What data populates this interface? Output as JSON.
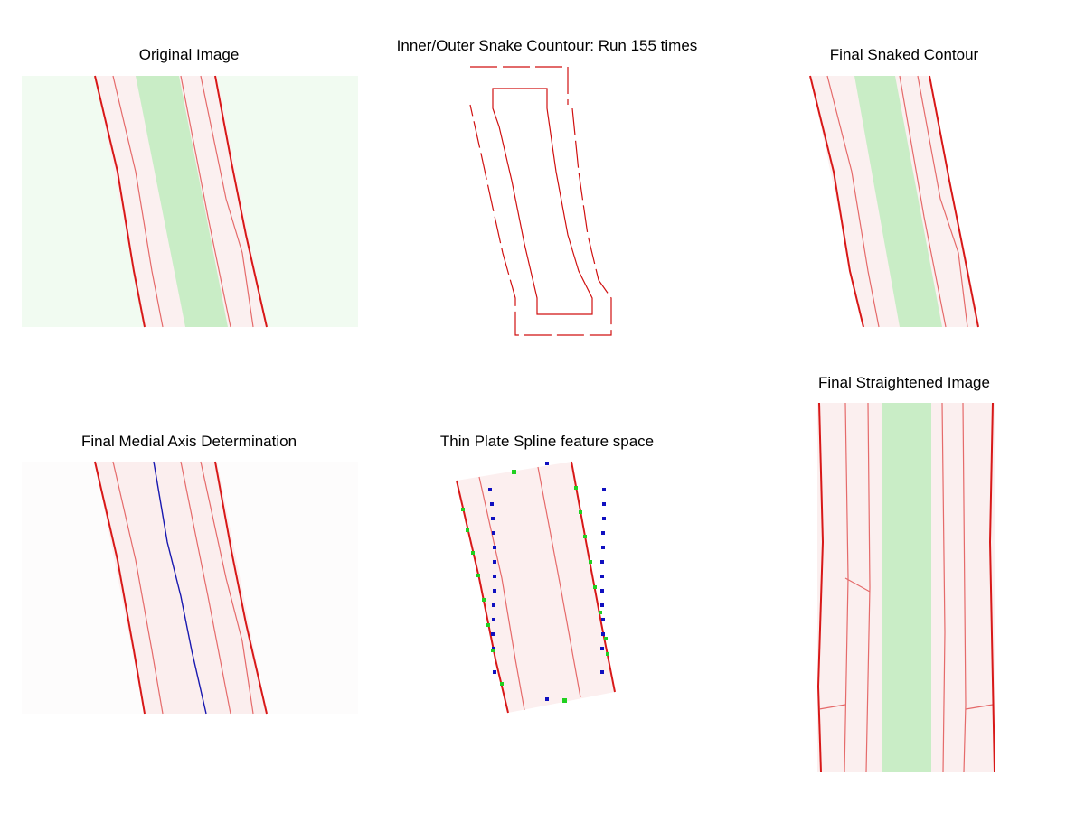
{
  "panels": [
    {
      "title": "Original Image"
    },
    {
      "title": "Inner/Outer Snake Countour: Run 155 times"
    },
    {
      "title": "Final Snaked Contour"
    },
    {
      "title": "Final Medial Axis Determination"
    },
    {
      "title": "Thin Plate Spline feature space"
    },
    {
      "title": "Final Straightened Image"
    }
  ]
}
